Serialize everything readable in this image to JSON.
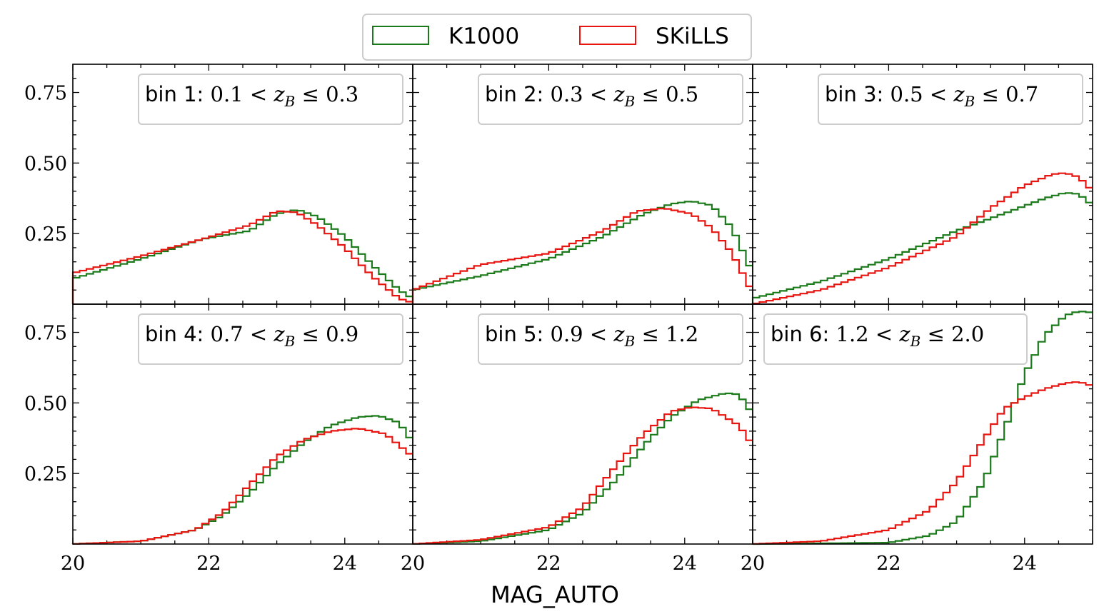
{
  "chart_data": {
    "type": "step-histogram",
    "layout": "2x3 panels, shared axes",
    "xlabel": "MAG_AUTO",
    "ylabel": "",
    "xlim": [
      20,
      25
    ],
    "ylim": [
      0,
      0.85
    ],
    "xticks": [
      20,
      22,
      24
    ],
    "xtick_labels": [
      "20",
      "22",
      "24"
    ],
    "yticks": [
      0.25,
      0.5,
      0.75
    ],
    "ytick_labels": [
      "0.25",
      "0.50",
      "0.75"
    ],
    "bin_width": 0.1,
    "legend": {
      "placement": "top-center, above panels",
      "entries": [
        {
          "label": "K1000",
          "color": "#1a7a1a"
        },
        {
          "label": "SKiLLS",
          "color": "#e8140f"
        }
      ]
    },
    "panels": [
      {
        "label_prefix": "bin 1:",
        "range_label": "0.1 < zB ≤ 0.3",
        "range_lo": "0.1",
        "range_hi": "0.3",
        "series": [
          {
            "name": "K1000",
            "points": [
              [
                20,
                0.09
              ],
              [
                21,
                0.16
              ],
              [
                21.9,
                0.23
              ],
              [
                22.6,
                0.26
              ],
              [
                23.0,
                0.32
              ],
              [
                23.3,
                0.335
              ],
              [
                23.6,
                0.31
              ],
              [
                24.0,
                0.24
              ],
              [
                24.4,
                0.14
              ],
              [
                24.8,
                0.05
              ],
              [
                25,
                0.02
              ]
            ]
          },
          {
            "name": "SKiLLS",
            "points": [
              [
                20,
                0.11
              ],
              [
                21,
                0.17
              ],
              [
                21.9,
                0.23
              ],
              [
                22.6,
                0.28
              ],
              [
                23.0,
                0.33
              ],
              [
                23.3,
                0.325
              ],
              [
                23.6,
                0.28
              ],
              [
                24.0,
                0.2
              ],
              [
                24.4,
                0.1
              ],
              [
                24.8,
                0.02
              ],
              [
                25,
                0.005
              ]
            ]
          }
        ]
      },
      {
        "label_prefix": "bin 2:",
        "range_label": "0.3 < zB ≤ 0.5",
        "range_lo": "0.3",
        "range_hi": "0.5",
        "series": [
          {
            "name": "K1000",
            "points": [
              [
                20,
                0.05
              ],
              [
                21,
                0.1
              ],
              [
                22,
                0.16
              ],
              [
                22.8,
                0.24
              ],
              [
                23.4,
                0.32
              ],
              [
                23.8,
                0.355
              ],
              [
                24.1,
                0.365
              ],
              [
                24.4,
                0.35
              ],
              [
                24.7,
                0.27
              ],
              [
                25,
                0.11
              ]
            ]
          },
          {
            "name": "SKiLLS",
            "points": [
              [
                20,
                0.05
              ],
              [
                21,
                0.14
              ],
              [
                22,
                0.18
              ],
              [
                22.8,
                0.26
              ],
              [
                23.3,
                0.33
              ],
              [
                23.7,
                0.34
              ],
              [
                24.1,
                0.32
              ],
              [
                24.4,
                0.27
              ],
              [
                24.7,
                0.18
              ],
              [
                25,
                0.04
              ]
            ]
          }
        ]
      },
      {
        "label_prefix": "bin 3:",
        "range_label": "0.5 < zB ≤ 0.7",
        "range_lo": "0.5",
        "range_hi": "0.7",
        "series": [
          {
            "name": "K1000",
            "points": [
              [
                20,
                0.02
              ],
              [
                21,
                0.08
              ],
              [
                22,
                0.16
              ],
              [
                23,
                0.26
              ],
              [
                23.8,
                0.33
              ],
              [
                24.3,
                0.375
              ],
              [
                24.6,
                0.395
              ],
              [
                24.8,
                0.39
              ],
              [
                25,
                0.35
              ]
            ]
          },
          {
            "name": "SKiLLS",
            "points": [
              [
                20,
                0.0
              ],
              [
                21,
                0.05
              ],
              [
                22,
                0.13
              ],
              [
                23,
                0.24
              ],
              [
                23.5,
                0.34
              ],
              [
                24.0,
                0.42
              ],
              [
                24.4,
                0.46
              ],
              [
                24.6,
                0.465
              ],
              [
                24.8,
                0.45
              ],
              [
                25,
                0.4
              ]
            ]
          }
        ]
      },
      {
        "label_prefix": "bin 4:",
        "range_label": "0.7 < zB ≤ 0.9",
        "range_lo": "0.7",
        "range_hi": "0.9",
        "series": [
          {
            "name": "K1000",
            "points": [
              [
                20,
                0.0
              ],
              [
                21,
                0.01
              ],
              [
                21.8,
                0.05
              ],
              [
                22.2,
                0.1
              ],
              [
                22.6,
                0.18
              ],
              [
                23.0,
                0.28
              ],
              [
                23.4,
                0.36
              ],
              [
                23.8,
                0.42
              ],
              [
                24.2,
                0.45
              ],
              [
                24.5,
                0.455
              ],
              [
                24.8,
                0.43
              ],
              [
                25,
                0.36
              ]
            ]
          },
          {
            "name": "SKiLLS",
            "points": [
              [
                20,
                0.0
              ],
              [
                21,
                0.01
              ],
              [
                21.8,
                0.05
              ],
              [
                22.2,
                0.11
              ],
              [
                22.6,
                0.21
              ],
              [
                23.0,
                0.31
              ],
              [
                23.4,
                0.37
              ],
              [
                23.8,
                0.4
              ],
              [
                24.2,
                0.41
              ],
              [
                24.6,
                0.39
              ],
              [
                25,
                0.31
              ]
            ]
          }
        ]
      },
      {
        "label_prefix": "bin 5:",
        "range_label": "0.9 < zB ≤ 1.2",
        "range_lo": "0.9",
        "range_hi": "1.2",
        "series": [
          {
            "name": "K1000",
            "points": [
              [
                20,
                0.0
              ],
              [
                21,
                0.01
              ],
              [
                22,
                0.05
              ],
              [
                22.5,
                0.11
              ],
              [
                23.0,
                0.23
              ],
              [
                23.4,
                0.35
              ],
              [
                23.8,
                0.45
              ],
              [
                24.2,
                0.51
              ],
              [
                24.6,
                0.535
              ],
              [
                24.8,
                0.53
              ],
              [
                25,
                0.46
              ]
            ]
          },
          {
            "name": "SKiLLS",
            "points": [
              [
                20,
                0.0
              ],
              [
                21,
                0.015
              ],
              [
                22,
                0.06
              ],
              [
                22.5,
                0.13
              ],
              [
                23.0,
                0.28
              ],
              [
                23.4,
                0.39
              ],
              [
                23.8,
                0.47
              ],
              [
                24.1,
                0.485
              ],
              [
                24.4,
                0.48
              ],
              [
                24.8,
                0.42
              ],
              [
                25,
                0.35
              ]
            ]
          }
        ]
      },
      {
        "label_prefix": "bin 6:",
        "range_label": "1.2 < zB ≤ 2.0",
        "range_lo": "1.2",
        "range_hi": "2.0",
        "series": [
          {
            "name": "K1000",
            "points": [
              [
                20,
                0.0
              ],
              [
                22,
                0.005
              ],
              [
                22.6,
                0.03
              ],
              [
                23.0,
                0.08
              ],
              [
                23.4,
                0.22
              ],
              [
                23.7,
                0.4
              ],
              [
                24.0,
                0.6
              ],
              [
                24.3,
                0.74
              ],
              [
                24.6,
                0.81
              ],
              [
                24.8,
                0.825
              ],
              [
                25,
                0.82
              ]
            ]
          },
          {
            "name": "SKiLLS",
            "points": [
              [
                20,
                0.0
              ],
              [
                21,
                0.01
              ],
              [
                22,
                0.05
              ],
              [
                22.6,
                0.12
              ],
              [
                23.0,
                0.22
              ],
              [
                23.4,
                0.37
              ],
              [
                23.7,
                0.48
              ],
              [
                24.0,
                0.52
              ],
              [
                24.3,
                0.55
              ],
              [
                24.6,
                0.57
              ],
              [
                24.8,
                0.575
              ],
              [
                25,
                0.56
              ]
            ]
          }
        ]
      }
    ]
  }
}
